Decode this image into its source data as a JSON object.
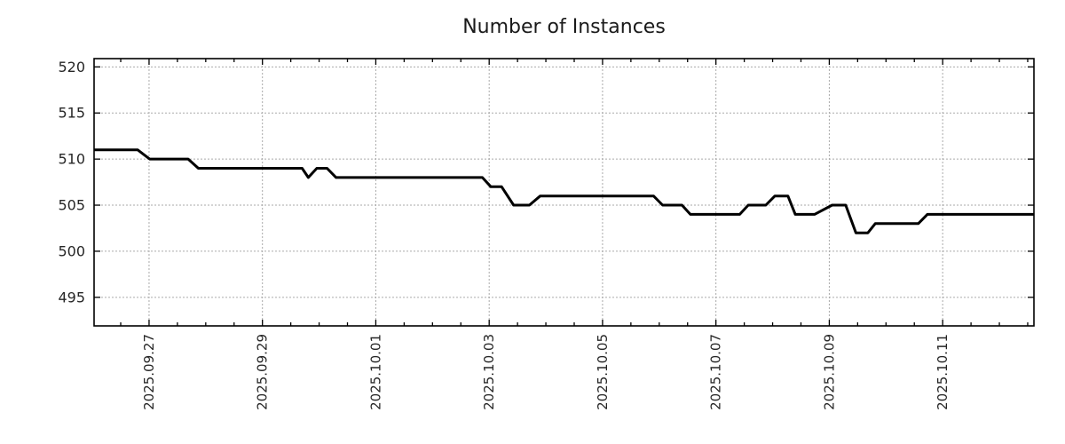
{
  "page": {
    "background": "#ffffff"
  },
  "chart_data": {
    "type": "line",
    "title": "Number of Instances",
    "xlabel": "",
    "ylabel": "",
    "legend": "none",
    "grid": {
      "style": "dotted",
      "color": "#aaaaaa"
    },
    "axis_color": "#000000",
    "label_color": "#262626",
    "x_unit": "days relative to 2025.09.27",
    "x_range_days": [
      -0.97,
      15.61
    ],
    "ylim": [
      491.9,
      520.9
    ],
    "y_ticks": [
      495,
      500,
      505,
      510,
      515,
      520
    ],
    "x_major_ticks": [
      {
        "day": 0,
        "label": "2025.09.27"
      },
      {
        "day": 2,
        "label": "2025.09.29"
      },
      {
        "day": 4,
        "label": "2025.10.01"
      },
      {
        "day": 6,
        "label": "2025.10.03"
      },
      {
        "day": 8,
        "label": "2025.10.05"
      },
      {
        "day": 10,
        "label": "2025.10.07"
      },
      {
        "day": 12,
        "label": "2025.10.09"
      },
      {
        "day": 14,
        "label": "2025.10.11"
      }
    ],
    "x_minor_tick_interval_days": 0.5,
    "series": [
      {
        "name": "instances",
        "color": "#000000",
        "width": 3,
        "points": [
          [
            -0.97,
            511
          ],
          [
            -0.2,
            511
          ],
          [
            0.01,
            510
          ],
          [
            0.69,
            510
          ],
          [
            0.87,
            509
          ],
          [
            2.7,
            509
          ],
          [
            2.81,
            508
          ],
          [
            2.96,
            509
          ],
          [
            3.14,
            509
          ],
          [
            3.3,
            508
          ],
          [
            5.88,
            508
          ],
          [
            6.03,
            507
          ],
          [
            6.22,
            507
          ],
          [
            6.43,
            505
          ],
          [
            6.71,
            505
          ],
          [
            6.9,
            506
          ],
          [
            8.9,
            506
          ],
          [
            9.06,
            505
          ],
          [
            9.4,
            505
          ],
          [
            9.55,
            504
          ],
          [
            10.42,
            504
          ],
          [
            10.57,
            505
          ],
          [
            10.88,
            505
          ],
          [
            11.04,
            506
          ],
          [
            11.27,
            506
          ],
          [
            11.4,
            504
          ],
          [
            11.74,
            504
          ],
          [
            12.05,
            505
          ],
          [
            12.29,
            505
          ],
          [
            12.47,
            502
          ],
          [
            12.68,
            502
          ],
          [
            12.81,
            503
          ],
          [
            13.57,
            503
          ],
          [
            13.73,
            504
          ],
          [
            15.61,
            504
          ]
        ]
      }
    ]
  }
}
